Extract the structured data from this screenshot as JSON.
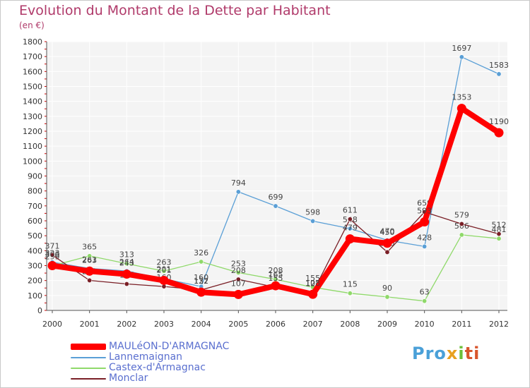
{
  "page": {
    "title": "Evolution du Montant de la Dette par Habitant",
    "subtitle": "(en €)"
  },
  "chart_data": {
    "type": "line",
    "title": "Evolution du Montant de la Dette par Habitant",
    "subtitle": "(en €)",
    "categories": [
      "2000",
      "2001",
      "2002",
      "2003",
      "2004",
      "2005",
      "2006",
      "2007",
      "2008",
      "2009",
      "2010",
      "2011",
      "2012"
    ],
    "ylim": [
      0,
      1800
    ],
    "yticks": [
      0,
      100,
      200,
      300,
      400,
      500,
      600,
      700,
      800,
      900,
      1000,
      1100,
      1200,
      1300,
      1400,
      1500,
      1600,
      1700,
      1800
    ],
    "grid": true,
    "legend_position": "bottom-left",
    "series": [
      {
        "name": "MAULéON-D'ARMAGNAC",
        "color": "#ff0000",
        "values": [
          300,
          263,
          243,
          201,
          122,
          107,
          165,
          108,
          479,
          450,
          593,
          1353,
          1190
        ]
      },
      {
        "name": "Lannemaignan",
        "color": "#5a9fd6",
        "values": [
          323,
          281,
          264,
          211,
          160,
          794,
          699,
          598,
          548,
          470,
          428,
          1697,
          1583
        ]
      },
      {
        "name": "Castex-d'Armagnac",
        "color": "#8fd96a",
        "values": [
          299,
          365,
          313,
          263,
          326,
          253,
          208,
          155,
          115,
          90,
          63,
          506,
          481
        ]
      },
      {
        "name": "Monclar",
        "color": "#7a1f26",
        "values": [
          371,
          201,
          177,
          160,
          137,
          208,
          155,
          121,
          611,
          390,
          659,
          579,
          512
        ]
      }
    ]
  },
  "logo": {
    "text": "Proxiti",
    "p1": "Pro",
    "p2": "x",
    "p3": "i",
    "p4": "ti"
  }
}
